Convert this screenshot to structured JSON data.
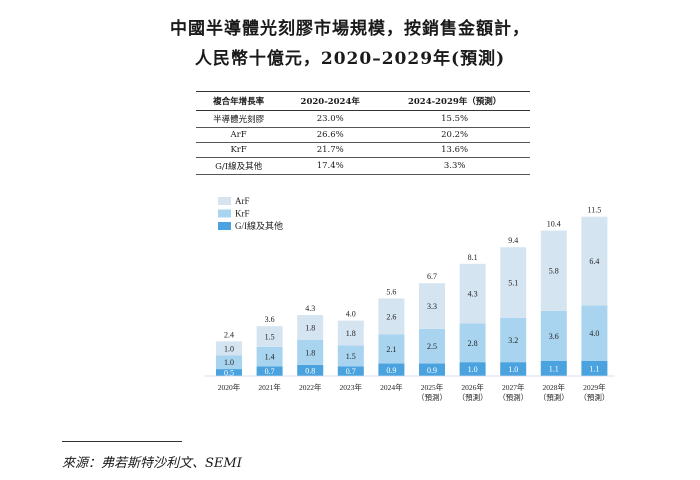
{
  "title": {
    "line1": "中國半導體光刻膠市場規模，按銷售金額計，",
    "line2": "人民幣十億元，2020–2029年(預測)"
  },
  "cagr_table": {
    "headers": [
      "複合年增長率",
      "2020-2024年",
      "2024-2029年（預測）"
    ],
    "rows": [
      [
        "半導體光刻膠",
        "23.0%",
        "15.5%"
      ],
      [
        "ArF",
        "26.6%",
        "20.2%"
      ],
      [
        "KrF",
        "21.7%",
        "13.6%"
      ],
      [
        "G/I線及其他",
        "17.4%",
        "3.3%"
      ]
    ]
  },
  "chart_data": {
    "type": "bar",
    "stacked": true,
    "categories": [
      "2020年",
      "2021年",
      "2022年",
      "2023年",
      "2024年",
      "2025年\n（預測）",
      "2026年\n（預測）",
      "2027年\n（預測）",
      "2028年\n（預測）",
      "2029年\n（預測）"
    ],
    "series": [
      {
        "name": "G/I線及其他",
        "values": [
          0.5,
          0.7,
          0.8,
          0.7,
          0.9,
          0.9,
          1.0,
          1.0,
          1.1,
          1.1
        ]
      },
      {
        "name": "KrF",
        "values": [
          1.0,
          1.4,
          1.8,
          1.5,
          2.1,
          2.5,
          2.8,
          3.2,
          3.6,
          4.0
        ]
      },
      {
        "name": "ArF",
        "values": [
          1.0,
          1.5,
          1.8,
          1.8,
          2.6,
          3.3,
          4.3,
          5.1,
          5.8,
          6.4
        ]
      }
    ],
    "totals": [
      2.4,
      3.6,
      4.3,
      4.0,
      5.6,
      6.7,
      8.1,
      9.4,
      10.4,
      11.5
    ],
    "colors": {
      "G/I線及其他": "#4aa3df",
      "KrF": "#a9d4ef",
      "ArF": "#d5e4f1"
    },
    "legend_order": [
      "ArF",
      "KrF",
      "G/I線及其他"
    ],
    "legend_position": "top-left",
    "ylim": [
      0,
      12
    ],
    "grid": false
  },
  "source": "來源：弗若斯特沙利文、SEMI"
}
